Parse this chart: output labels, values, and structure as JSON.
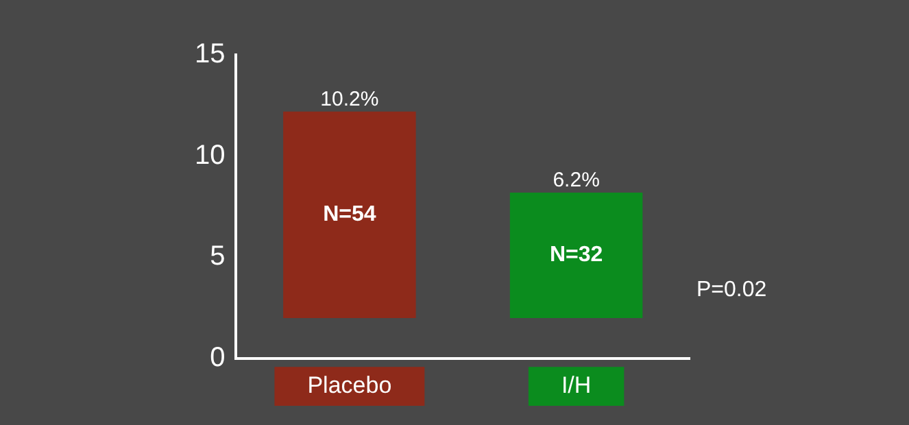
{
  "chart_data": {
    "type": "bar",
    "categories": [
      "Placebo",
      "I/H"
    ],
    "values": [
      10.2,
      6.2
    ],
    "base": [
      2,
      2
    ],
    "colors": [
      "#8e2a1a",
      "#0b8c1e"
    ],
    "value_labels": [
      "10.2%",
      "6.2%"
    ],
    "ylim": [
      0,
      15
    ],
    "yticks": [
      0,
      5,
      10,
      15
    ],
    "grid": false,
    "legend": false,
    "annotations": [
      "N=54",
      "N=32",
      "P=0.02"
    ]
  }
}
